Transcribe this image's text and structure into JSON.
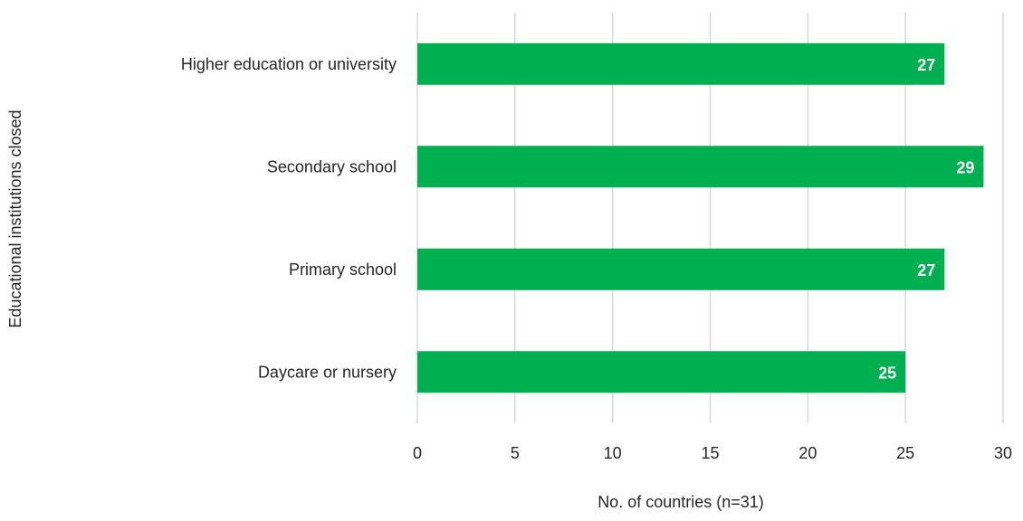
{
  "chart_data": {
    "type": "bar",
    "orientation": "horizontal",
    "categories": [
      "Higher education or university",
      "Secondary school",
      "Primary school",
      "Daycare or nursery"
    ],
    "values": [
      27,
      29,
      27,
      25
    ],
    "data_labels": [
      "27",
      "29",
      "27",
      "25"
    ],
    "xlabel": "No. of countries (n=31)",
    "ylabel": "Educational institutions closed",
    "xlim": [
      0,
      30
    ],
    "xticks": [
      0,
      5,
      10,
      15,
      20,
      25,
      30
    ],
    "xtick_labels": [
      "0",
      "5",
      "10",
      "15",
      "20",
      "25",
      "30"
    ],
    "grid": "vertical",
    "legend": "none",
    "bar_color": "#00b050",
    "grid_color": "#d9d9d9"
  }
}
